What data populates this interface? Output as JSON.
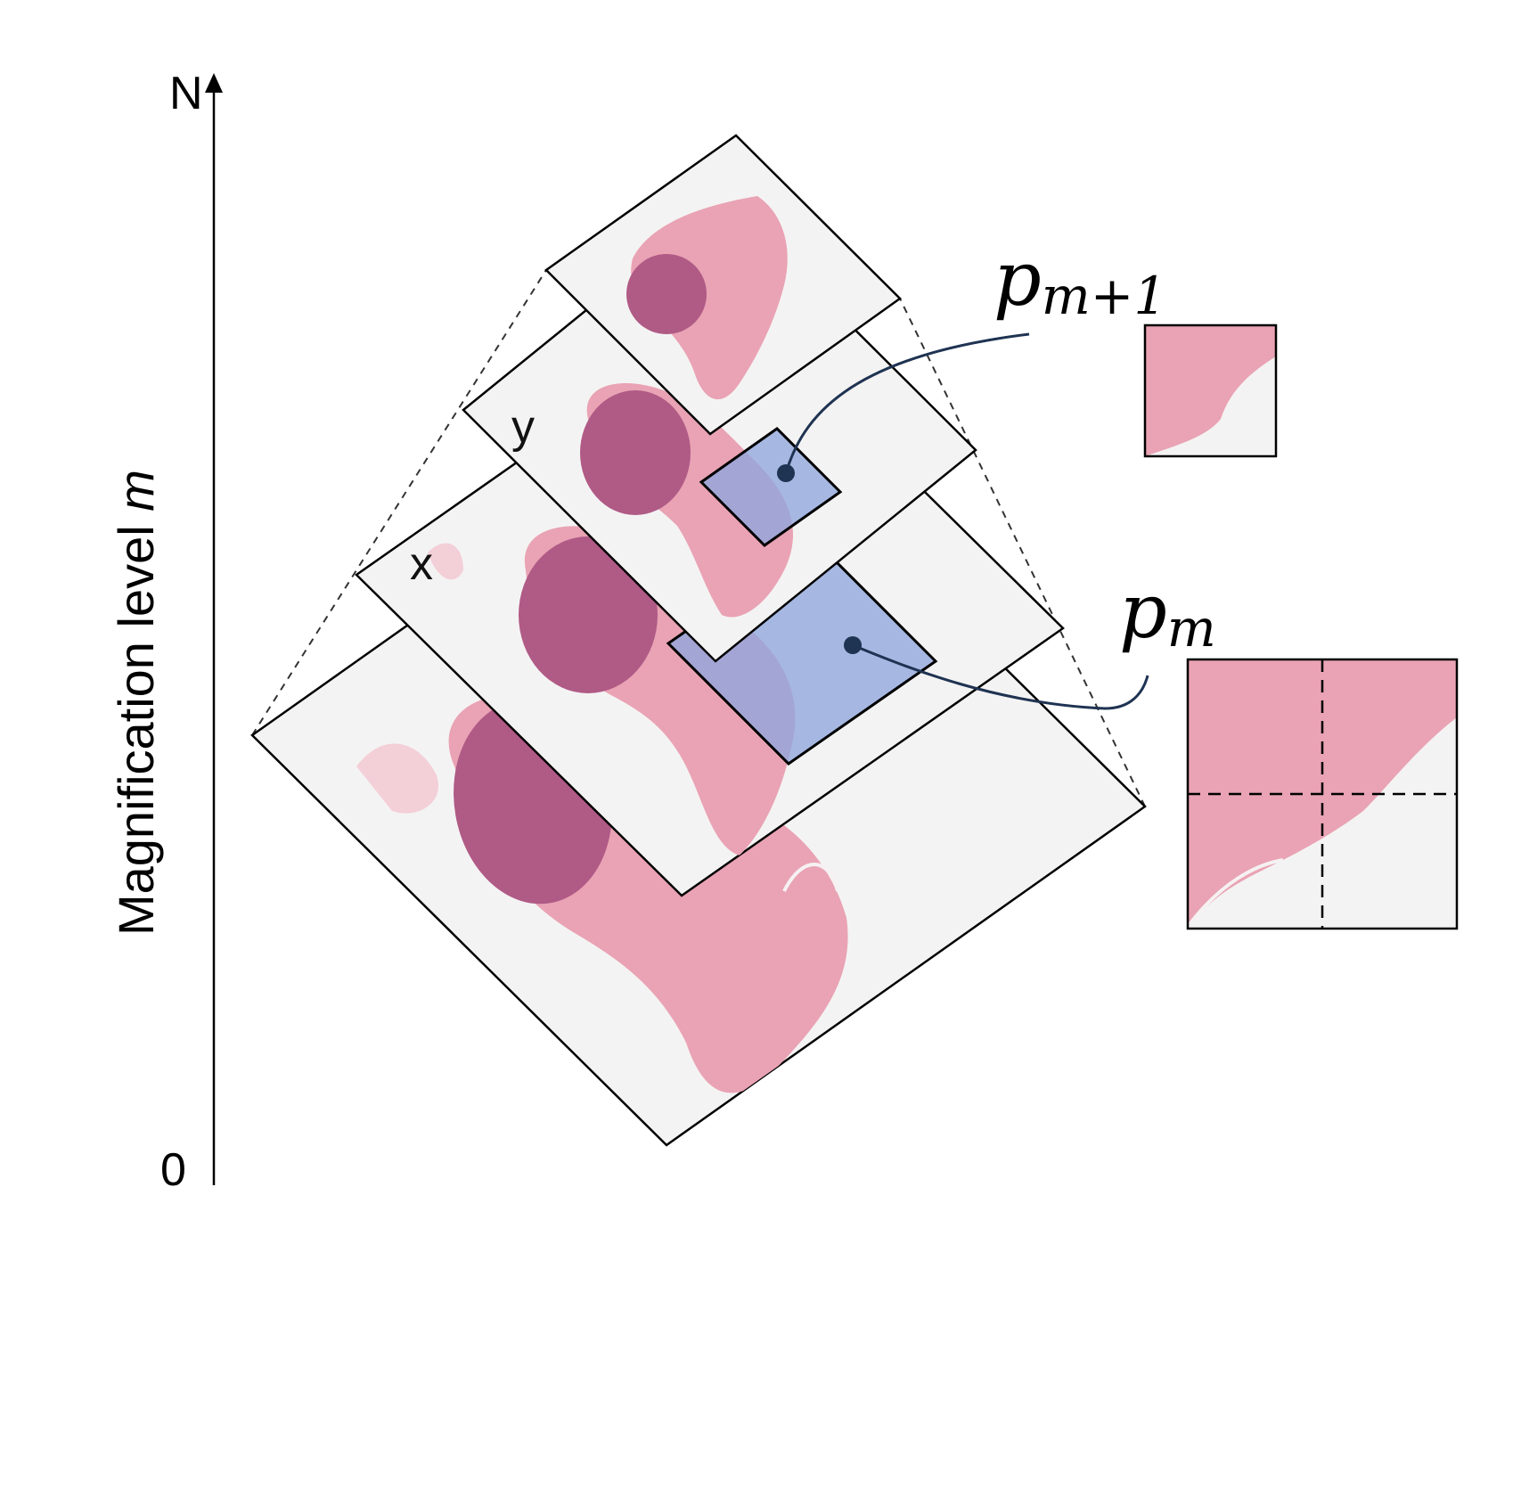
{
  "axis": {
    "label_text": "Magnification level ",
    "label_var": "m",
    "top_label": "N",
    "bottom_label": "0"
  },
  "coords": {
    "x_label": "x",
    "y_label": "y"
  },
  "patches": {
    "upper": {
      "base": "p",
      "sub": "m+1"
    },
    "lower": {
      "base": "p",
      "sub": "m"
    }
  },
  "colors": {
    "tissue_pink": "#e9a3b4",
    "tissue_dark": "#b05a86",
    "highlight": "#8fa6dc",
    "connector": "#1f3352",
    "slide_bg": "#f4f3f3"
  }
}
